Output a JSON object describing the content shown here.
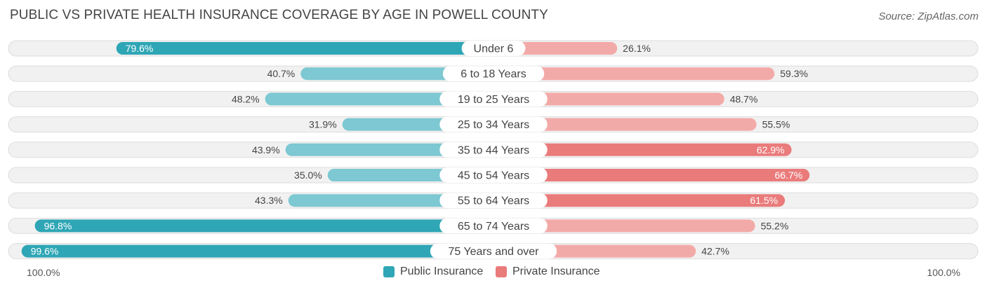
{
  "title": "PUBLIC VS PRIVATE HEALTH INSURANCE COVERAGE BY AGE IN POWELL COUNTY",
  "source": "Source: ZipAtlas.com",
  "colors": {
    "public_dark": "#2ea6b5",
    "public_light": "#7dc8d2",
    "private_dark": "#ea7b7b",
    "private_light": "#f2aaa8",
    "row_bg": "#f1f1f1",
    "row_border": "#dddddd"
  },
  "legend": {
    "public_label": "Public Insurance",
    "private_label": "Private Insurance"
  },
  "axis": {
    "left_label": "100.0%",
    "right_label": "100.0%"
  },
  "chart_data": {
    "type": "bar",
    "orientation": "horizontal-diverging",
    "categories": [
      "Under 6",
      "6 to 18 Years",
      "19 to 25 Years",
      "25 to 34 Years",
      "35 to 44 Years",
      "45 to 54 Years",
      "55 to 64 Years",
      "65 to 74 Years",
      "75 Years and over"
    ],
    "series": [
      {
        "name": "Public Insurance",
        "values": [
          79.6,
          40.7,
          48.2,
          31.9,
          43.9,
          35.0,
          43.3,
          96.8,
          99.6
        ],
        "labels": [
          "79.6%",
          "40.7%",
          "48.2%",
          "31.9%",
          "43.9%",
          "35.0%",
          "43.3%",
          "96.8%",
          "99.6%"
        ]
      },
      {
        "name": "Private Insurance",
        "values": [
          26.1,
          59.3,
          48.7,
          55.5,
          62.9,
          66.7,
          61.5,
          55.2,
          42.7
        ],
        "labels": [
          "26.1%",
          "59.3%",
          "48.7%",
          "55.5%",
          "62.9%",
          "66.7%",
          "61.5%",
          "55.2%",
          "42.7%"
        ]
      }
    ],
    "xlim": [
      -100,
      100
    ],
    "grid": false,
    "legend_position": "bottom-center"
  }
}
